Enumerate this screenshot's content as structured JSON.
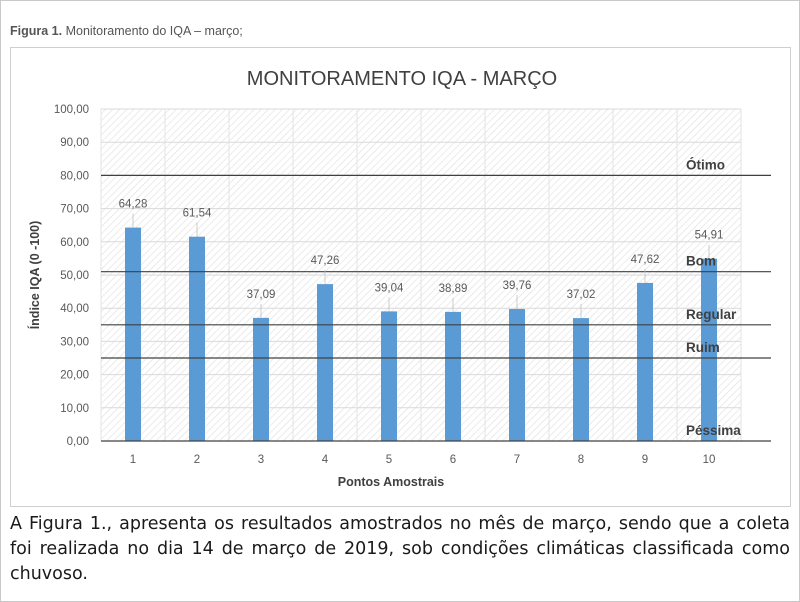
{
  "figure_caption": {
    "label": "Figura 1.",
    "text": "Monitoramento do IQA – março;"
  },
  "chart_data": {
    "type": "bar",
    "title": "MONITORAMENTO IQA - MARÇO",
    "xlabel": "Pontos Amostrais",
    "ylabel": "Índice IQA (0 -100)",
    "categories": [
      "1",
      "2",
      "3",
      "4",
      "5",
      "6",
      "7",
      "8",
      "9",
      "10"
    ],
    "values": [
      64.28,
      61.54,
      37.09,
      47.26,
      39.04,
      38.89,
      39.76,
      37.02,
      47.62,
      54.91
    ],
    "value_labels": [
      "64,28",
      "61,54",
      "37,09",
      "47,26",
      "39,04",
      "38,89",
      "39,76",
      "37,02",
      "47,62",
      "54,91"
    ],
    "ylim": [
      0,
      100
    ],
    "yticks": [
      0,
      10,
      20,
      30,
      40,
      50,
      60,
      70,
      80,
      90,
      100
    ],
    "ytick_labels": [
      "0,00",
      "10,00",
      "20,00",
      "30,00",
      "40,00",
      "50,00",
      "60,00",
      "70,00",
      "80,00",
      "90,00",
      "100,00"
    ],
    "reference_lines": [
      {
        "label": "Ótimo",
        "value": 80
      },
      {
        "label": "Bom",
        "value": 51
      },
      {
        "label": "Regular",
        "value": 35
      },
      {
        "label": "Ruim",
        "value": 25
      },
      {
        "label": "Péssima",
        "value": 0
      }
    ],
    "grid": true,
    "background_pattern": "diagonal-hatch",
    "bar_color": "#5b9bd5",
    "reference_line_color": "#404040"
  },
  "paragraph": "A Figura 1., apresenta os resultados amostrados no mês de março, sendo que a coleta foi realizada no dia 14 de março de 2019, sob condições climáticas classificada como chuvoso."
}
